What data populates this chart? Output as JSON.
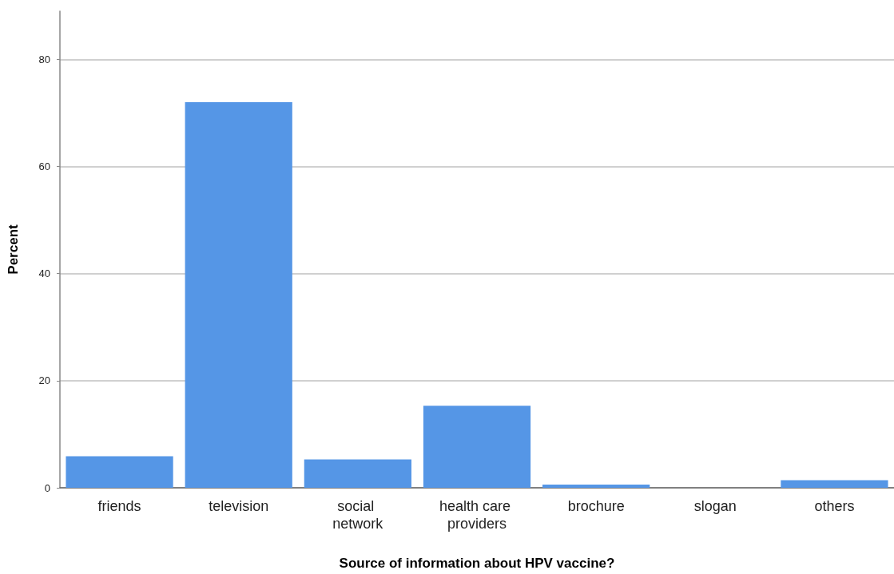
{
  "chart_data": {
    "type": "bar",
    "xlabel": "Source of information about HPV vaccine?",
    "ylabel": "Percent",
    "categories": [
      "friends",
      "television",
      "social network",
      "health care providers",
      "brochure",
      "slogan",
      "others"
    ],
    "values": [
      5.9,
      72.0,
      5.3,
      15.3,
      0.6,
      0,
      1.4
    ],
    "color": "#5596e6",
    "ylim": [
      0,
      89
    ],
    "yticks": [
      0,
      20,
      40,
      60,
      80
    ],
    "grid": "y"
  }
}
